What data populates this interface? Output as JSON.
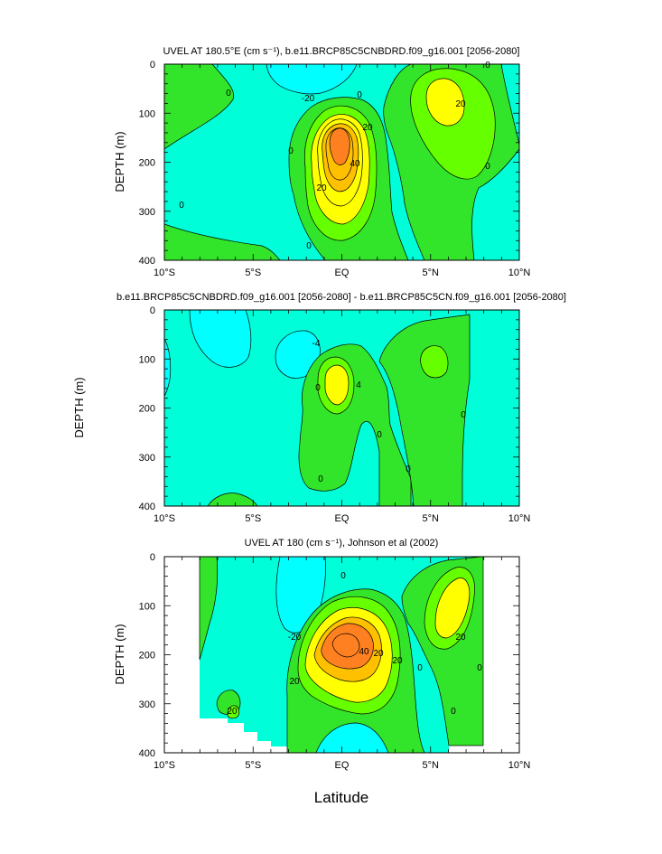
{
  "figure": {
    "xlabel": "Latitude",
    "colors": {
      "cyan": "#00ffff",
      "aquamarine": "#00ffd8",
      "green": "#33e52a",
      "lime": "#66ff00",
      "yellow": "#ffff00",
      "gold": "#ffc000",
      "orange": "#ff8020",
      "white": "#ffffff",
      "black": "#000000"
    }
  },
  "chart_data": [
    {
      "type": "contour",
      "title": "UVEL AT 180.5°E (cm s⁻¹), b.e11.BRCP85C5CNBDRD.f09_g16.001 [2056-2080]",
      "ylabel": "DEPTH (m)",
      "xlim": [
        -10,
        10
      ],
      "ylim": [
        400,
        0
      ],
      "x_ticks": [
        -10,
        -5,
        0,
        5,
        10
      ],
      "x_tick_labels": [
        "10°S",
        "5°S",
        "EQ",
        "5°N",
        "10°N"
      ],
      "y_ticks": [
        0,
        100,
        200,
        300,
        400
      ],
      "y_tick_labels": [
        "0",
        "100",
        "200",
        "300",
        "400"
      ],
      "contour_interval": 10,
      "contour_labels": [
        "-20",
        "0",
        "0",
        "0",
        "0",
        "0",
        "20",
        "40",
        "20",
        "20",
        "0",
        "0"
      ],
      "core_max": {
        "lat": 0,
        "depth": 155,
        "value": 60
      }
    },
    {
      "type": "contour",
      "title": "b.e11.BRCP85C5CNBDRD.f09_g16.001 [2056-2080] - b.e11.BRCP85C5CN.f09_g16.001 [2056-2080]",
      "ylabel": "DEPTH (m)",
      "xlim": [
        -10,
        10
      ],
      "ylim": [
        400,
        0
      ],
      "x_ticks": [
        -10,
        -5,
        0,
        5,
        10
      ],
      "x_tick_labels": [
        "10°S",
        "5°S",
        "EQ",
        "5°N",
        "10°N"
      ],
      "y_ticks": [
        0,
        100,
        200,
        300,
        400
      ],
      "y_tick_labels": [
        "0",
        "100",
        "200",
        "300",
        "400"
      ],
      "contour_interval": 2,
      "contour_labels": [
        "-4",
        "0",
        "4",
        "0",
        "0",
        "0",
        "0"
      ]
    },
    {
      "type": "contour",
      "title": "UVEL AT 180 (cm s⁻¹), Johnson et al (2002)",
      "ylabel": "DEPTH (m)",
      "xlim": [
        -10,
        10
      ],
      "ylim": [
        400,
        0
      ],
      "x_ticks": [
        -10,
        -5,
        0,
        5,
        10
      ],
      "x_tick_labels": [
        "10°S",
        "5°S",
        "EQ",
        "5°N",
        "10°N"
      ],
      "y_ticks": [
        0,
        100,
        200,
        300,
        400
      ],
      "y_tick_labels": [
        "0",
        "100",
        "200",
        "300",
        "400"
      ],
      "data_lat_range": [
        -8,
        8
      ],
      "contour_interval": 10,
      "contour_labels": [
        "-20",
        "0",
        "20",
        "40",
        "20",
        "20",
        "20",
        "0",
        "0",
        "0",
        "20"
      ],
      "core_max": {
        "lat": 0.2,
        "depth": 170,
        "value": 60
      }
    }
  ]
}
